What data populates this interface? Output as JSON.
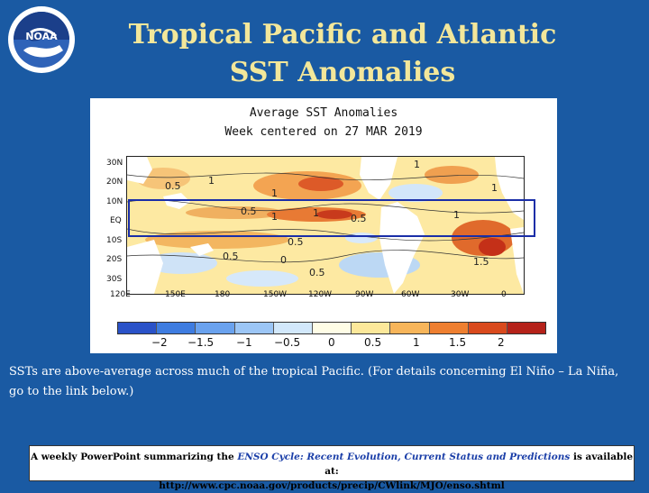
{
  "logo": {
    "text": "NOAA",
    "icon": "noaa-seal-icon"
  },
  "title": {
    "line1": "Tropical Pacific and Atlantic",
    "line2": "SST Anomalies"
  },
  "figure": {
    "title_line1": "Average SST Anomalies",
    "title_line2": "Week centered on 27 MAR 2019",
    "lat_labels": [
      "30N",
      "20N",
      "10N",
      "EQ",
      "10S",
      "20S",
      "30S"
    ],
    "lon_labels": [
      "120E",
      "150E",
      "180",
      "150W",
      "120W",
      "90W",
      "60W",
      "30W",
      "0"
    ],
    "map_labels": [
      "1",
      "0.5",
      "1",
      "1",
      "0.5",
      "1",
      "1",
      "0.5",
      "0.5",
      "1",
      "0.5",
      "0",
      "0.5",
      "1.5",
      "1"
    ],
    "colorbar_labels": [
      "−2",
      "−1.5",
      "−1",
      "−0.5",
      "0",
      "0.5",
      "1",
      "1.5",
      "2"
    ],
    "colors": [
      "#2a52c8",
      "#3e7ce0",
      "#6aa2ee",
      "#9cc6f6",
      "#d2e8fb",
      "#fffde6",
      "#fce89a",
      "#f7b55a",
      "#ee7f30",
      "#d94a1d",
      "#b5221a"
    ]
  },
  "description": "SSTs are above-average across much of the tropical Pacific. (For details concerning El Niño – La Niña, go to the link below.)",
  "footer": {
    "prefix": "A weekly PowerPoint summarizing the ",
    "italic": "ENSO Cycle: Recent Evolution, Current Status and Predictions",
    "suffix": " is available at:",
    "url": "http://www.cpc.noaa.gov/products/precip/CWlink/MJO/enso.shtml"
  }
}
